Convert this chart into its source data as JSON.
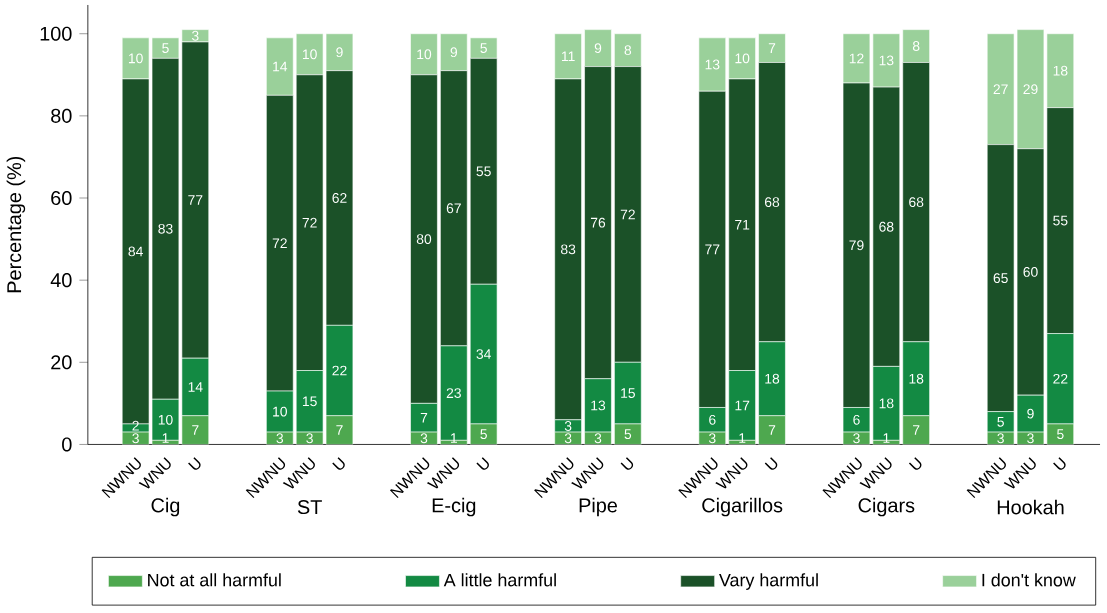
{
  "chart_data": {
    "type": "bar",
    "stacked": true,
    "data_labels": true,
    "ylabel": "Percentage (%)",
    "ylim": [
      0,
      107
    ],
    "yticks": [
      0,
      20,
      40,
      60,
      80,
      100
    ],
    "grid": false,
    "legend": "bottom",
    "categories": [
      "NWNU",
      "WNU",
      "U",
      "NWNU",
      "WNU",
      "U",
      "NWNU",
      "WNU",
      "U",
      "NWNU",
      "WNU",
      "U",
      "NWNU",
      "WNU",
      "U",
      "NWNU",
      "WNU",
      "U",
      "NWNU",
      "WNU",
      "U"
    ],
    "annotations": [
      "Cig",
      "ST",
      "E-cig",
      "Pipe",
      "Cigarillos",
      "Cigars",
      "Hookah"
    ],
    "series": [
      {
        "name": "Not at all harmful",
        "color": "#4ea84f",
        "values": [
          3,
          1,
          7,
          3,
          3,
          7,
          3,
          1,
          5,
          3,
          3,
          5,
          3,
          1,
          7,
          3,
          1,
          7,
          3,
          3,
          5
        ]
      },
      {
        "name": "A little harmful",
        "color": "#138a43",
        "values": [
          2,
          10,
          14,
          10,
          15,
          22,
          7,
          23,
          34,
          3,
          13,
          15,
          6,
          17,
          18,
          6,
          18,
          18,
          5,
          9,
          22
        ]
      },
      {
        "name": "Vary harmful",
        "color": "#1b5128",
        "values": [
          84,
          83,
          77,
          72,
          72,
          62,
          80,
          67,
          55,
          83,
          76,
          72,
          77,
          71,
          68,
          79,
          68,
          68,
          65,
          60,
          55
        ]
      },
      {
        "name": "I don't know",
        "color": "#9ad09a",
        "values": [
          10,
          5,
          3,
          14,
          10,
          9,
          10,
          9,
          5,
          11,
          9,
          8,
          13,
          10,
          7,
          12,
          13,
          8,
          27,
          29,
          18
        ]
      }
    ]
  }
}
